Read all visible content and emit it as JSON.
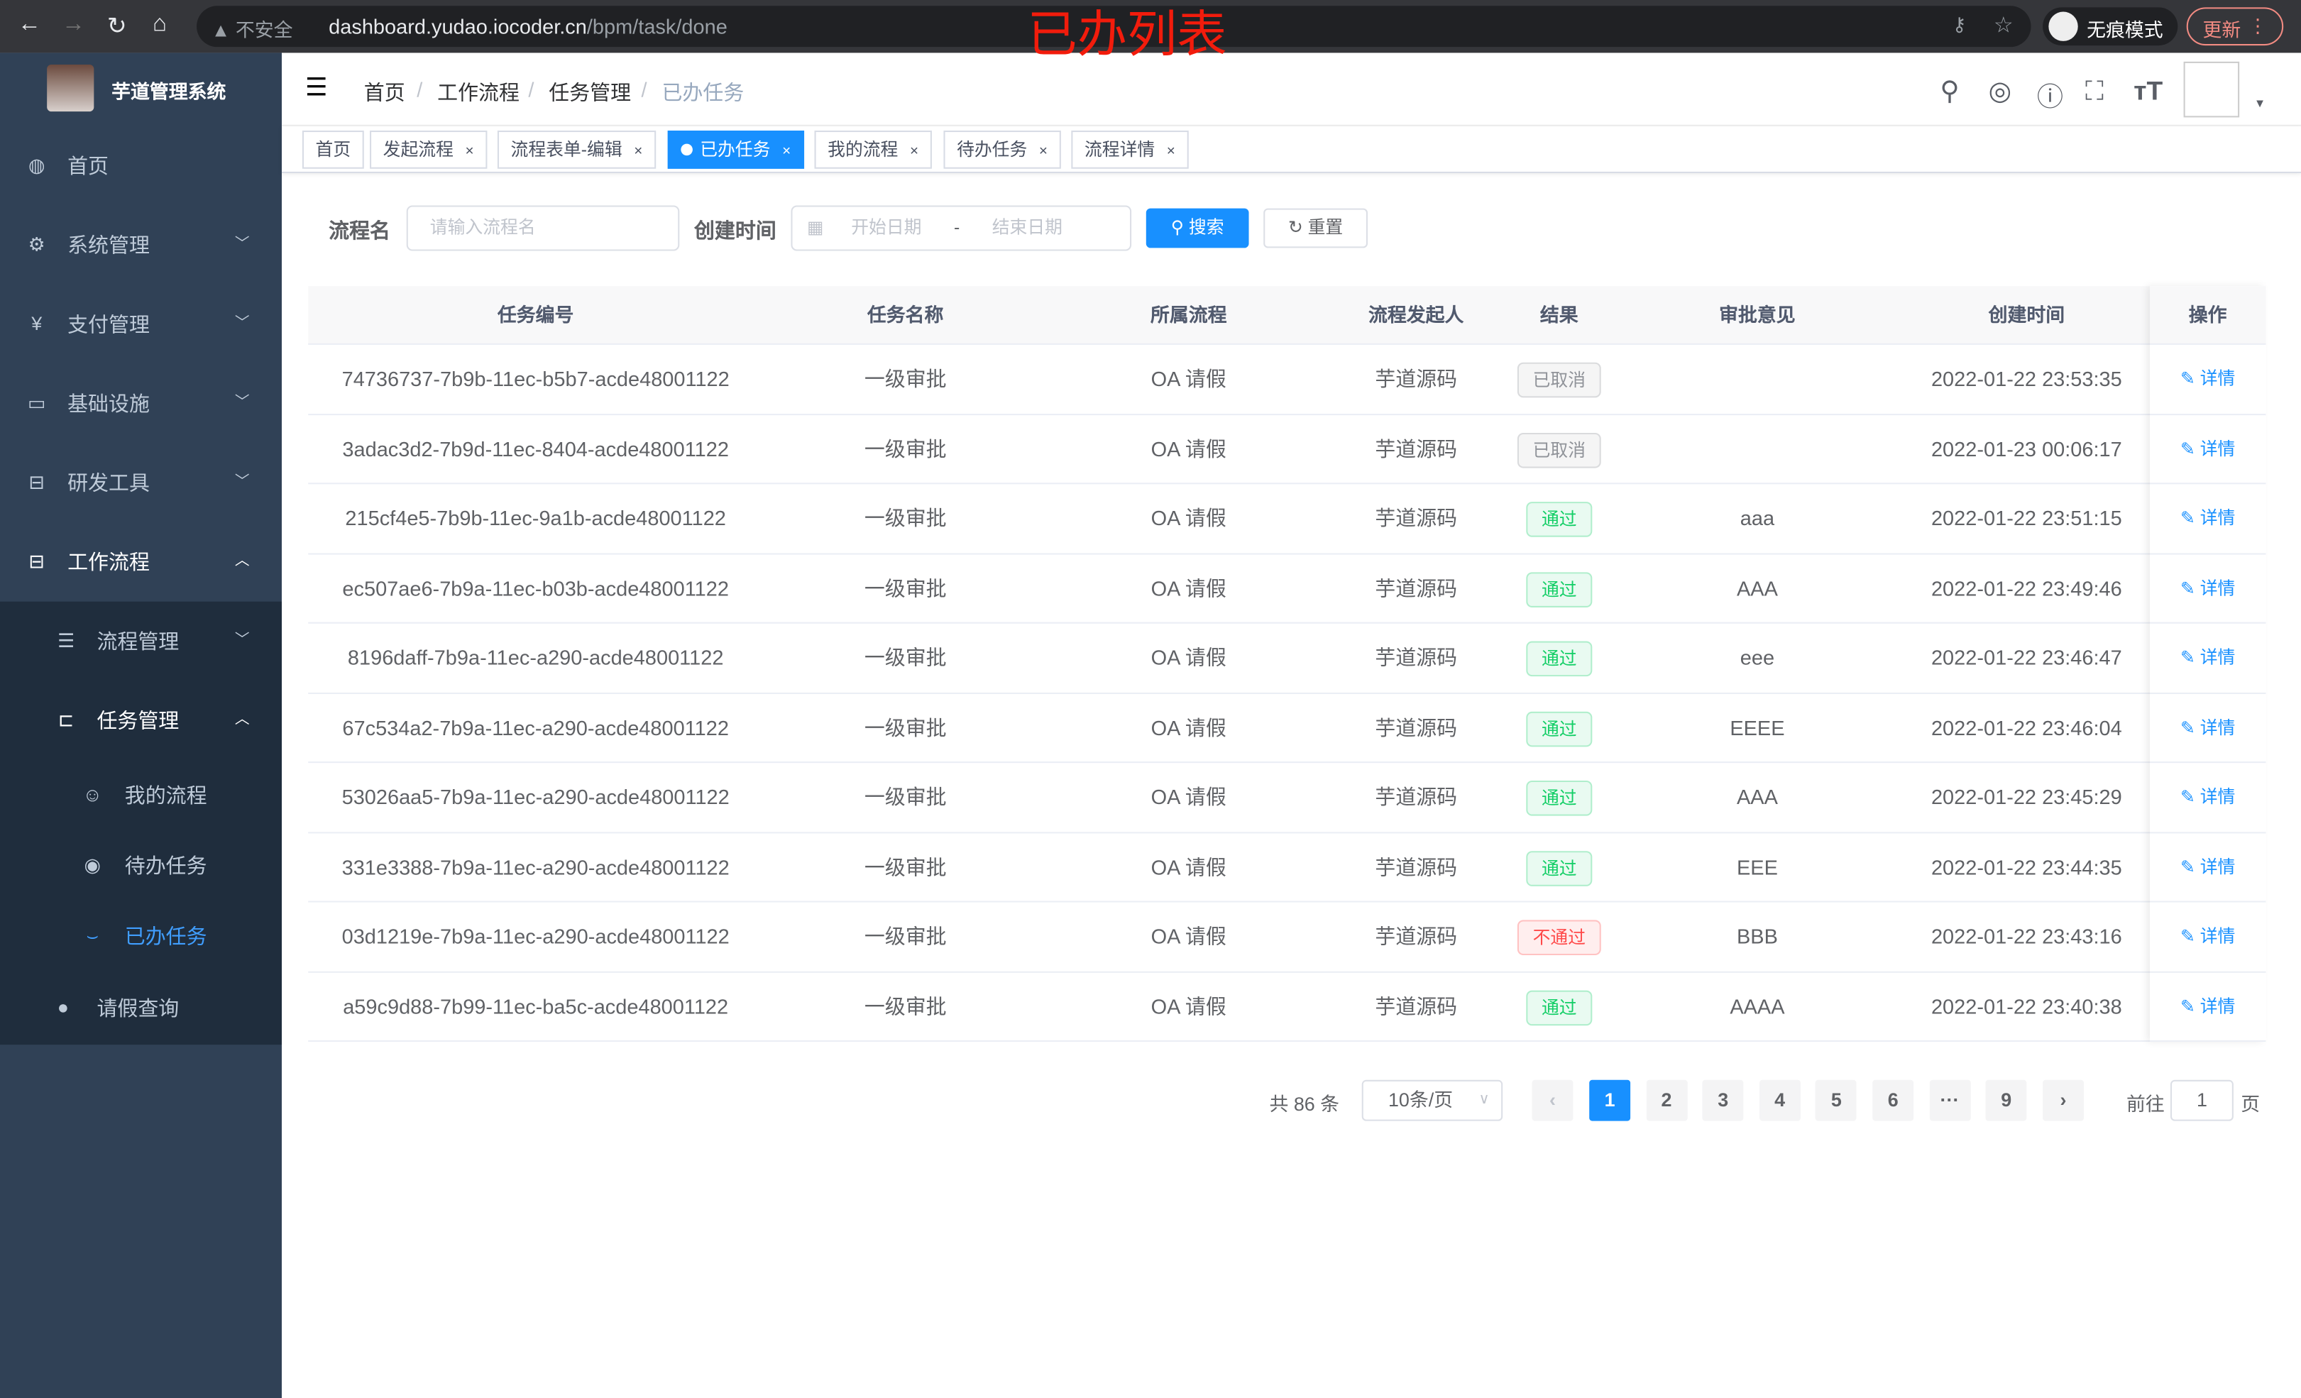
{
  "browser": {
    "security": "不安全",
    "url_host": "dashboard.yudao.iocoder.cn",
    "url_path": "/bpm/task/done",
    "incognito": "无痕模式",
    "update": "更新"
  },
  "annotation": "已办列表",
  "sidebar": {
    "title": "芋道管理系统",
    "items": [
      {
        "label": "首页",
        "icon": "dashboard-icon"
      },
      {
        "label": "系统管理",
        "icon": "gear-icon"
      },
      {
        "label": "支付管理",
        "icon": "yen-icon"
      },
      {
        "label": "基础设施",
        "icon": "monitor-icon"
      },
      {
        "label": "研发工具",
        "icon": "toolbox-icon"
      },
      {
        "label": "工作流程",
        "icon": "toolbox-icon"
      }
    ],
    "sub": [
      {
        "label": "流程管理"
      },
      {
        "label": "任务管理"
      }
    ],
    "subsub": [
      {
        "label": "我的流程"
      },
      {
        "label": "待办任务"
      },
      {
        "label": "已办任务"
      }
    ],
    "last": {
      "label": "请假查询"
    }
  },
  "breadcrumb": [
    "首页",
    "工作流程",
    "任务管理",
    "已办任务"
  ],
  "tags": [
    {
      "label": "首页"
    },
    {
      "label": "发起流程"
    },
    {
      "label": "流程表单-编辑"
    },
    {
      "label": "已办任务"
    },
    {
      "label": "我的流程"
    },
    {
      "label": "待办任务"
    },
    {
      "label": "流程详情"
    }
  ],
  "search": {
    "name_label": "流程名",
    "name_placeholder": "请输入流程名",
    "time_label": "创建时间",
    "start_placeholder": "开始日期",
    "end_placeholder": "结束日期",
    "sep": "-",
    "search_btn": "搜索",
    "reset_btn": "重置"
  },
  "table": {
    "headers": [
      "任务编号",
      "任务名称",
      "所属流程",
      "流程发起人",
      "结果",
      "审批意见",
      "创建时间",
      "操作"
    ],
    "op_label": "详情",
    "rows": [
      [
        "74736737-7b9b-11ec-b5b7-acde48001122",
        "一级审批",
        "OA 请假",
        "芋道源码",
        "已取消",
        "",
        "2022-01-22 23:53:35"
      ],
      [
        "3adac3d2-7b9d-11ec-8404-acde48001122",
        "一级审批",
        "OA 请假",
        "芋道源码",
        "已取消",
        "",
        "2022-01-23 00:06:17"
      ],
      [
        "215cf4e5-7b9b-11ec-9a1b-acde48001122",
        "一级审批",
        "OA 请假",
        "芋道源码",
        "通过",
        "aaa",
        "2022-01-22 23:51:15"
      ],
      [
        "ec507ae6-7b9a-11ec-b03b-acde48001122",
        "一级审批",
        "OA 请假",
        "芋道源码",
        "通过",
        "AAA",
        "2022-01-22 23:49:46"
      ],
      [
        "8196daff-7b9a-11ec-a290-acde48001122",
        "一级审批",
        "OA 请假",
        "芋道源码",
        "通过",
        "eee",
        "2022-01-22 23:46:47"
      ],
      [
        "67c534a2-7b9a-11ec-a290-acde48001122",
        "一级审批",
        "OA 请假",
        "芋道源码",
        "通过",
        "EEEE",
        "2022-01-22 23:46:04"
      ],
      [
        "53026aa5-7b9a-11ec-a290-acde48001122",
        "一级审批",
        "OA 请假",
        "芋道源码",
        "通过",
        "AAA",
        "2022-01-22 23:45:29"
      ],
      [
        "331e3388-7b9a-11ec-a290-acde48001122",
        "一级审批",
        "OA 请假",
        "芋道源码",
        "通过",
        "EEE",
        "2022-01-22 23:44:35"
      ],
      [
        "03d1219e-7b9a-11ec-a290-acde48001122",
        "一级审批",
        "OA 请假",
        "芋道源码",
        "不通过",
        "BBB",
        "2022-01-22 23:43:16"
      ],
      [
        "a59c9d88-7b99-11ec-ba5c-acde48001122",
        "一级审批",
        "OA 请假",
        "芋道源码",
        "通过",
        "AAAA",
        "2022-01-22 23:40:38"
      ]
    ]
  },
  "status_colors": {
    "已取消": "#909399",
    "通过": "#13ce66",
    "不通过": "#ff4949"
  },
  "pagination": {
    "total": "共 86 条",
    "page_size": "10条/页",
    "pages": [
      "1",
      "2",
      "3",
      "4",
      "5",
      "6",
      "···",
      "9"
    ],
    "current": "1",
    "goto_prefix": "前往",
    "goto_value": "1",
    "goto_suffix": "页"
  }
}
